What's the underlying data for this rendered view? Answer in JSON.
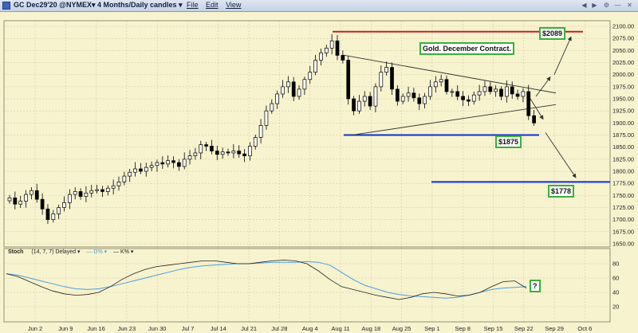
{
  "window": {
    "title": "GC Dec29'20 @NYMEX▾  4 Months/Daily candles ▾",
    "menu": [
      "File",
      "Edit",
      "View"
    ],
    "controls": [
      "◀",
      "▶",
      "⚙",
      "—",
      "✕"
    ]
  },
  "callouts": {
    "resistance": "$2089",
    "support": "$1875",
    "target": "$1778",
    "contract": "Gold. December Contract.",
    "stoch_q": "?"
  },
  "stoch_legend": {
    "name": "Stoch",
    "params": "(14, 7, 7) Delayed ▾",
    "d": "— D% ▾",
    "k": "— K% ▾"
  },
  "colors": {
    "background": "#f7f3cf",
    "up": "#ffffff",
    "down": "#000000",
    "resistance": "#cc2020",
    "support": "#1030d0",
    "d_line": "#4aa0e0",
    "k_line": "#222222",
    "callout_border": "#38b03a"
  },
  "chart_data": [
    {
      "type": "candlestick",
      "title": "",
      "price_ticks": [
        1650,
        1675,
        1700,
        1725,
        1750,
        1775,
        1800,
        1825,
        1850,
        1875,
        1900,
        1925,
        1950,
        1975,
        2000,
        2025,
        2050,
        2075,
        2100
      ],
      "ylim": [
        1645,
        2110
      ],
      "date_labels": [
        "Jun 2",
        "Jun 9",
        "Jun 16",
        "Jun 23",
        "Jun 30",
        "Jul 7",
        "Jul 14",
        "Jul 21",
        "Jul 28",
        "Aug 4",
        "Aug 11",
        "Aug 18",
        "Aug 25",
        "Sep 1",
        "Sep 8",
        "Sep 15",
        "Sep 22",
        "Sep 29",
        "Oct 6"
      ],
      "closes": [
        1745,
        1732,
        1738,
        1752,
        1760,
        1742,
        1722,
        1700,
        1712,
        1725,
        1735,
        1752,
        1758,
        1748,
        1755,
        1760,
        1762,
        1758,
        1765,
        1770,
        1778,
        1790,
        1798,
        1805,
        1800,
        1808,
        1812,
        1818,
        1815,
        1822,
        1818,
        1810,
        1825,
        1832,
        1838,
        1855,
        1852,
        1842,
        1835,
        1840,
        1838,
        1842,
        1836,
        1832,
        1852,
        1870,
        1895,
        1925,
        1940,
        1960,
        1975,
        1985,
        1955,
        1970,
        1990,
        2005,
        2030,
        2045,
        2055,
        2070,
        2040,
        2030,
        1950,
        1925,
        1945,
        1955,
        1935,
        1975,
        2005,
        2015,
        1970,
        1945,
        1955,
        1962,
        1952,
        1940,
        1955,
        1975,
        1985,
        1990,
        1965,
        1965,
        1955,
        1948,
        1945,
        1958,
        1965,
        1975,
        1965,
        1970,
        1955,
        1975,
        1960,
        1955,
        1965,
        1915,
        1900
      ],
      "levels": [
        {
          "label": "$2089",
          "value": 2089
        },
        {
          "label": "$1875",
          "value": 1875
        },
        {
          "label": "$1778",
          "value": 1778
        }
      ]
    },
    {
      "type": "line",
      "title": "",
      "yticks": [
        20,
        40,
        60,
        80
      ],
      "ylim": [
        0,
        100
      ],
      "series": [
        {
          "name": "D%",
          "values": [
            66,
            64,
            60,
            56,
            52,
            48,
            45,
            44,
            45,
            48,
            52,
            56,
            60,
            64,
            68,
            72,
            75,
            77,
            78,
            79,
            80,
            80,
            81,
            82,
            82,
            82,
            83,
            82,
            78,
            68,
            58,
            50,
            45,
            40,
            37,
            35,
            34,
            33,
            32,
            33,
            36,
            40,
            44,
            46,
            47,
            48
          ]
        },
        {
          "name": "K%",
          "values": [
            66,
            62,
            55,
            48,
            42,
            38,
            36,
            37,
            40,
            48,
            58,
            66,
            72,
            76,
            78,
            80,
            82,
            84,
            84,
            82,
            80,
            80,
            82,
            84,
            85,
            84,
            80,
            70,
            58,
            48,
            44,
            40,
            36,
            33,
            30,
            33,
            38,
            40,
            38,
            35,
            36,
            40,
            48,
            55,
            56,
            46
          ]
        }
      ]
    }
  ]
}
